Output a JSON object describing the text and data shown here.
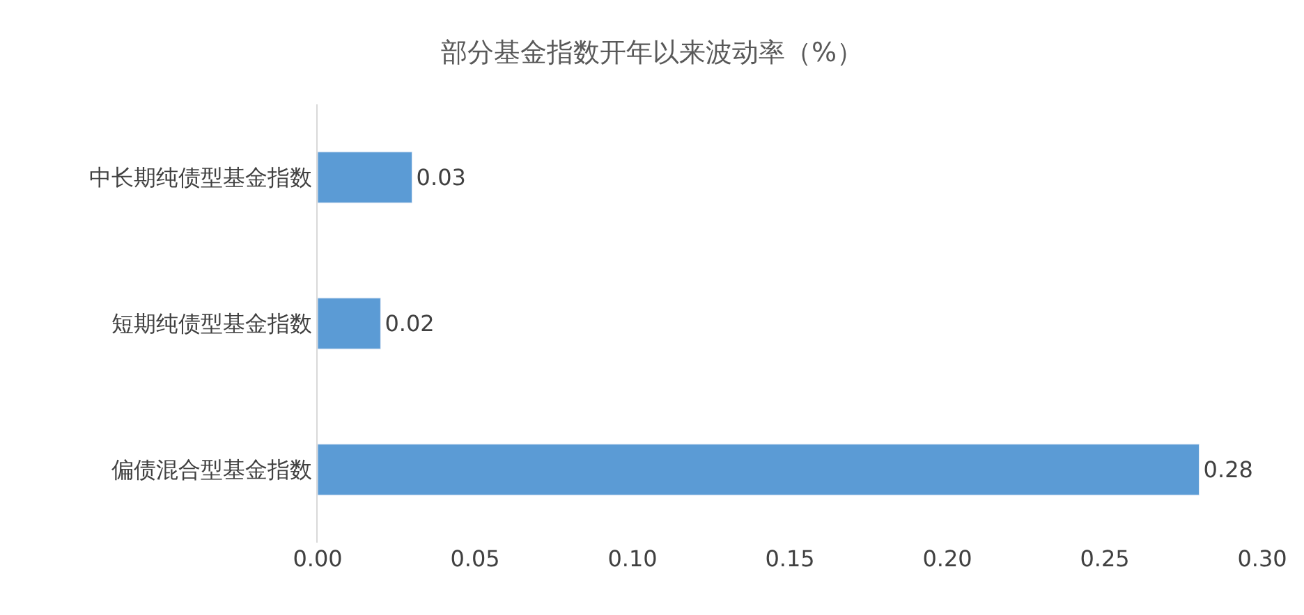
{
  "chart_data": {
    "type": "bar",
    "orientation": "horizontal",
    "title": "部分基金指数开年以来波动率（%）",
    "categories": [
      "中长期纯债型基金指数",
      "短期纯债型基金指数",
      "偏债混合型基金指数"
    ],
    "values": [
      0.03,
      0.02,
      0.28
    ],
    "color": "#5b9bd5",
    "xlim": [
      0,
      0.3
    ],
    "xticks": [
      {
        "value": 0,
        "label": "0.00"
      },
      {
        "value": 0.05,
        "label": "0.05"
      },
      {
        "value": 0.1,
        "label": "0.10"
      },
      {
        "value": 0.15,
        "label": "0.15"
      },
      {
        "value": 0.2,
        "label": "0.20"
      },
      {
        "value": 0.25,
        "label": "0.25"
      },
      {
        "value": 0.3,
        "label": "0.30"
      }
    ],
    "grid": false,
    "legend": false,
    "data_labels": true
  }
}
